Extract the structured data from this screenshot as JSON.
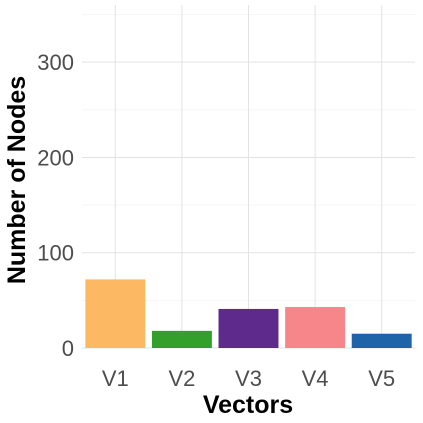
{
  "chart_data": {
    "type": "bar",
    "title": "",
    "xlabel": "Vectors",
    "ylabel": "Number of Nodes",
    "categories": [
      "V1",
      "V2",
      "V3",
      "V4",
      "V5"
    ],
    "values": [
      72,
      18,
      41,
      43,
      15
    ],
    "bar_colors": [
      "#FDB863",
      "#33A02C",
      "#5E2A8C",
      "#F7868A",
      "#1F64A8"
    ],
    "ylim": [
      0,
      360
    ],
    "yticks": [
      0,
      100,
      200,
      300
    ],
    "yticks_labels": [
      "0",
      "100",
      "200",
      "300"
    ],
    "grid": true,
    "legend": "none"
  }
}
